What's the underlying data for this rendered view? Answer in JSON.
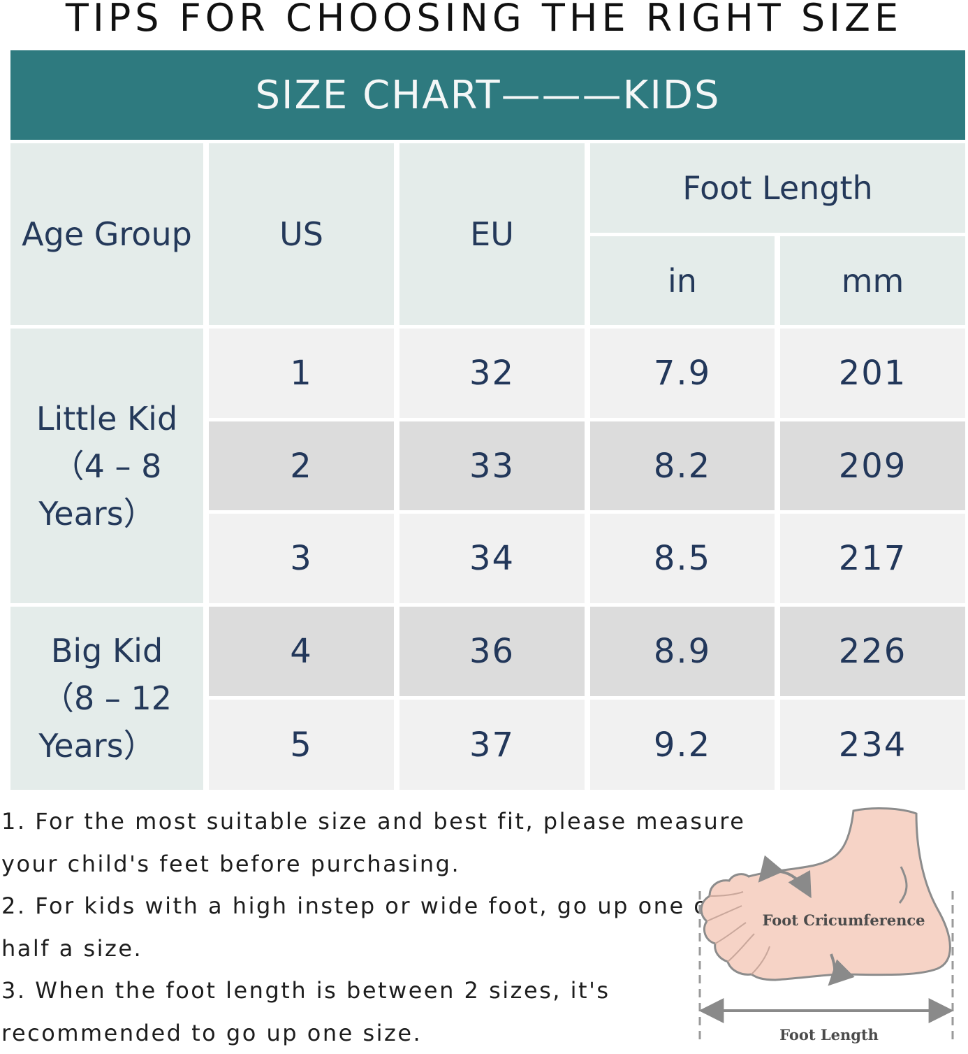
{
  "title": "TIPS FOR CHOOSING THE RIGHT SIZE",
  "banner": "SIZE CHART———KIDS",
  "headers": {
    "age_group": "Age Group",
    "us": "US",
    "eu": "EU",
    "foot_length": "Foot Length",
    "in": "in",
    "mm": "mm"
  },
  "groups": [
    {
      "line1": "Little Kid",
      "line2": "（4 – 8",
      "line3": "Years）"
    },
    {
      "line1": "Big Kid",
      "line2": "（8 – 12",
      "line3": "Years）"
    }
  ],
  "rows": [
    {
      "us": "1",
      "eu": "32",
      "in": "7.9",
      "mm": "201"
    },
    {
      "us": "2",
      "eu": "33",
      "in": "8.2",
      "mm": "209"
    },
    {
      "us": "3",
      "eu": "34",
      "in": "8.5",
      "mm": "217"
    },
    {
      "us": "4",
      "eu": "36",
      "in": "8.9",
      "mm": "226"
    },
    {
      "us": "5",
      "eu": "37",
      "in": "9.2",
      "mm": "234"
    }
  ],
  "notes": [
    "1. For the most suitable size and best fit, please measure",
    "your child's feet before purchasing.",
    "2. For kids with a high instep or wide foot, go up one or",
    "half a size.",
    "3. When the foot length is between 2 sizes, it's",
    "recommended to go up one size."
  ],
  "figure": {
    "circumference_label": "Foot Cricumference",
    "length_label": "Foot Length"
  }
}
